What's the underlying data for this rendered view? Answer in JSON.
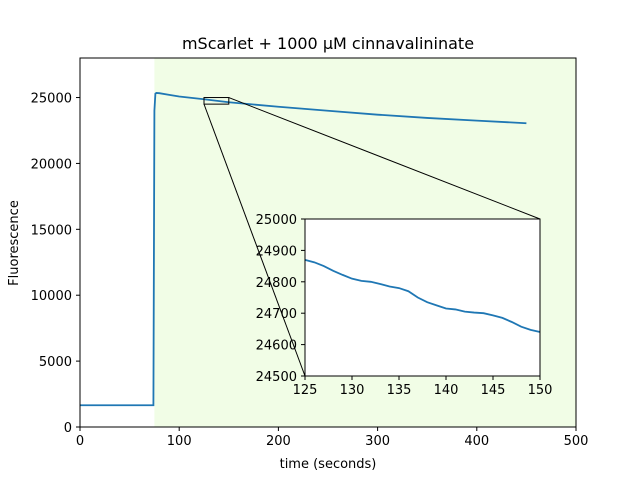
{
  "chart_data": [
    {
      "type": "line",
      "title": "mScarlet + 1000 µM cinnavalininate",
      "xlabel": "time (seconds)",
      "ylabel": "Fluorescence",
      "xlim": [
        0,
        500
      ],
      "ylim": [
        0,
        28000
      ],
      "x_ticks": [
        "0",
        "100",
        "200",
        "300",
        "400",
        "500"
      ],
      "y_ticks": [
        "0",
        "5000",
        "10000",
        "15000",
        "20000",
        "25000"
      ],
      "grid": false,
      "shaded_region": {
        "x_start": 75,
        "x_end": 500,
        "color": "#f1fde6"
      },
      "zoom_box": {
        "x": [
          125,
          150
        ],
        "y": [
          24500,
          25000
        ]
      },
      "series": [
        {
          "color": "#1f77b4",
          "x": [
            0,
            74,
            75,
            76,
            77,
            80,
            90,
            100,
            125,
            150,
            200,
            250,
            300,
            350,
            400,
            450
          ],
          "y": [
            1650,
            1650,
            24000,
            25300,
            25350,
            25330,
            25200,
            25080,
            24870,
            24640,
            24300,
            24000,
            23700,
            23450,
            23250,
            23050
          ]
        }
      ]
    },
    {
      "type": "line",
      "title": "",
      "xlabel": "",
      "ylabel": "",
      "xlim": [
        125,
        150
      ],
      "ylim": [
        24500,
        25000
      ],
      "x_ticks": [
        "125",
        "130",
        "135",
        "140",
        "145",
        "150"
      ],
      "y_ticks": [
        "24500",
        "24600",
        "24700",
        "24800",
        "24900",
        "25000"
      ],
      "grid": false,
      "series": [
        {
          "color": "#1f77b4",
          "x": [
            125,
            126,
            127,
            128,
            129,
            130,
            131,
            132,
            133,
            134,
            135,
            136,
            137,
            138,
            139,
            140,
            141,
            142,
            143,
            144,
            145,
            146,
            147,
            148,
            149,
            150
          ],
          "y": [
            24870,
            24862,
            24850,
            24835,
            24822,
            24810,
            24803,
            24800,
            24793,
            24785,
            24780,
            24770,
            24750,
            24735,
            24725,
            24715,
            24712,
            24705,
            24702,
            24700,
            24693,
            24685,
            24672,
            24657,
            24647,
            24640
          ]
        }
      ]
    }
  ]
}
